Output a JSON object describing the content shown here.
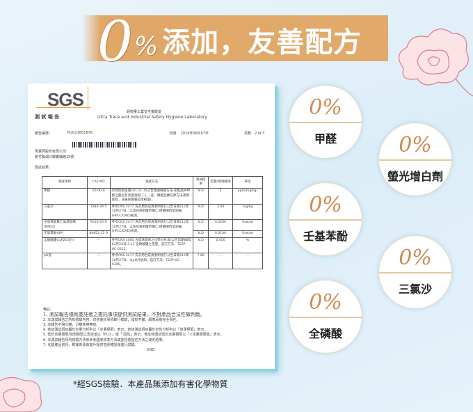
{
  "banner": {
    "zero": "0",
    "percent": "%",
    "title": "添加，友善配方"
  },
  "report": {
    "logo": "SGS",
    "doc_type": "測 試 報 告",
    "lab_cn": "超微量工業安全實驗室",
    "lab_en": "Ultra Trace and Industrial Safety Hygiene Laboratory",
    "report_no_label": "報告編號：",
    "report_no": "PUG21601876",
    "date": "日期： 2024年06月07日",
    "page": "頁數：2 of 3",
    "company": "馬寶貝股份有限公司",
    "address": "新竹縣湖口鄉實踐路19號",
    "result_label": "測試結果：",
    "columns": [
      "測試項目",
      "CAS NO.",
      "測試方法",
      "測試結果",
      "定量/偵測極限",
      "單位"
    ],
    "rows": [
      [
        "甲醛",
        "50-00-0",
        "行政院衛生署101.11.15公告建議檢驗方法-化粧品中甲醛之鑑別及含量測定(二)。(註：實驗室擴充原方法適用基質，非屬食藥署認證範圍)。",
        "N.D",
        "5",
        "ppm(mg/kg)"
      ],
      [
        "三氯沙",
        "3380-34-5",
        "參考CNS 2477 洗衣用合成清潔劑修訂公告日期112年10月27日，以高效液相層析儀/二極體陣列偵測器(HPLC/DAD)檢測。",
        "N.D",
        "3.00",
        "mg/kg"
      ],
      [
        "壬基苯酚聚乙氧基醚類(NPEO)",
        "9016-45-9",
        "參考CNS 2477 洗衣用合成清潔劑修訂公告日期112年10月27日，以高效液相層析儀/二極體陣列偵測器(HPLC/DAD)檢測。",
        "N.D",
        "0.0200",
        "%(w/w)"
      ],
      [
        "壬基苯酚(NP)",
        "84852-15-3",
        "",
        "N.D",
        "0.0100",
        "%(w/w)"
      ],
      [
        "全磷酸鹽(以P2O5計)",
        "---",
        "參考CNS 4085 合成清潔劑之化學分析法(公告日期88年03月24日)3.11 全磷酸鹽之定量，自訂方法：TESP-UC-0315。",
        "N.D",
        "0.050",
        "%"
      ],
      [
        "pH值",
        "---",
        "參考CNS 2477 洗衣用合成清潔劑修訂公告日期112年10月27日，以pH計檢測，自訂方法：TESP-UC-0306。",
        "7.80",
        "---",
        "---"
      ]
    ],
    "notes_label": "備註：",
    "notes": [
      "1. 測試報告僅就委託者之委託事項提供測試結果，不對產品合法性做判斷。",
      "2. 本測試報告之所有檢驗內容，均依委託事項執行檢驗，如有不實，願意承擔完全責任。",
      "3. 本報告不得分離，分離使用無效。",
      "4. 若該測試項目屬於定量分析則以「定量極限」表示；若該測試項目屬於定性分析則以「偵測極限」表示。",
      "5. 低於定量極限/偵測極限之測定值以「N.D.」或「 陰性」表示。微生物測試低於定量極限以「<定量極限值」表示。",
      "6. 本測試報告所列檢驗方法係參考國家標準方法或委託者指定方法之測定結果。",
      "7. 化驗產品資訊，數據來源由客戶提供並經確認後進行試驗。"
    ],
    "end": "END"
  },
  "badges": [
    {
      "value": "0%",
      "label": "甲醛"
    },
    {
      "value": "0%",
      "label": "螢光增白劑"
    },
    {
      "value": "0%",
      "label": "壬基苯酚"
    },
    {
      "value": "0%",
      "label": "三氯沙"
    },
    {
      "value": "0%",
      "label": "全磷酸"
    }
  ],
  "footer": "*經SGS檢驗．本產品無添加有害化學物質",
  "colors": {
    "band": "#e0a868",
    "badge_text": "#d08a50",
    "doc_shadow": "#8fd3e0",
    "flower": "#e88a9a"
  }
}
